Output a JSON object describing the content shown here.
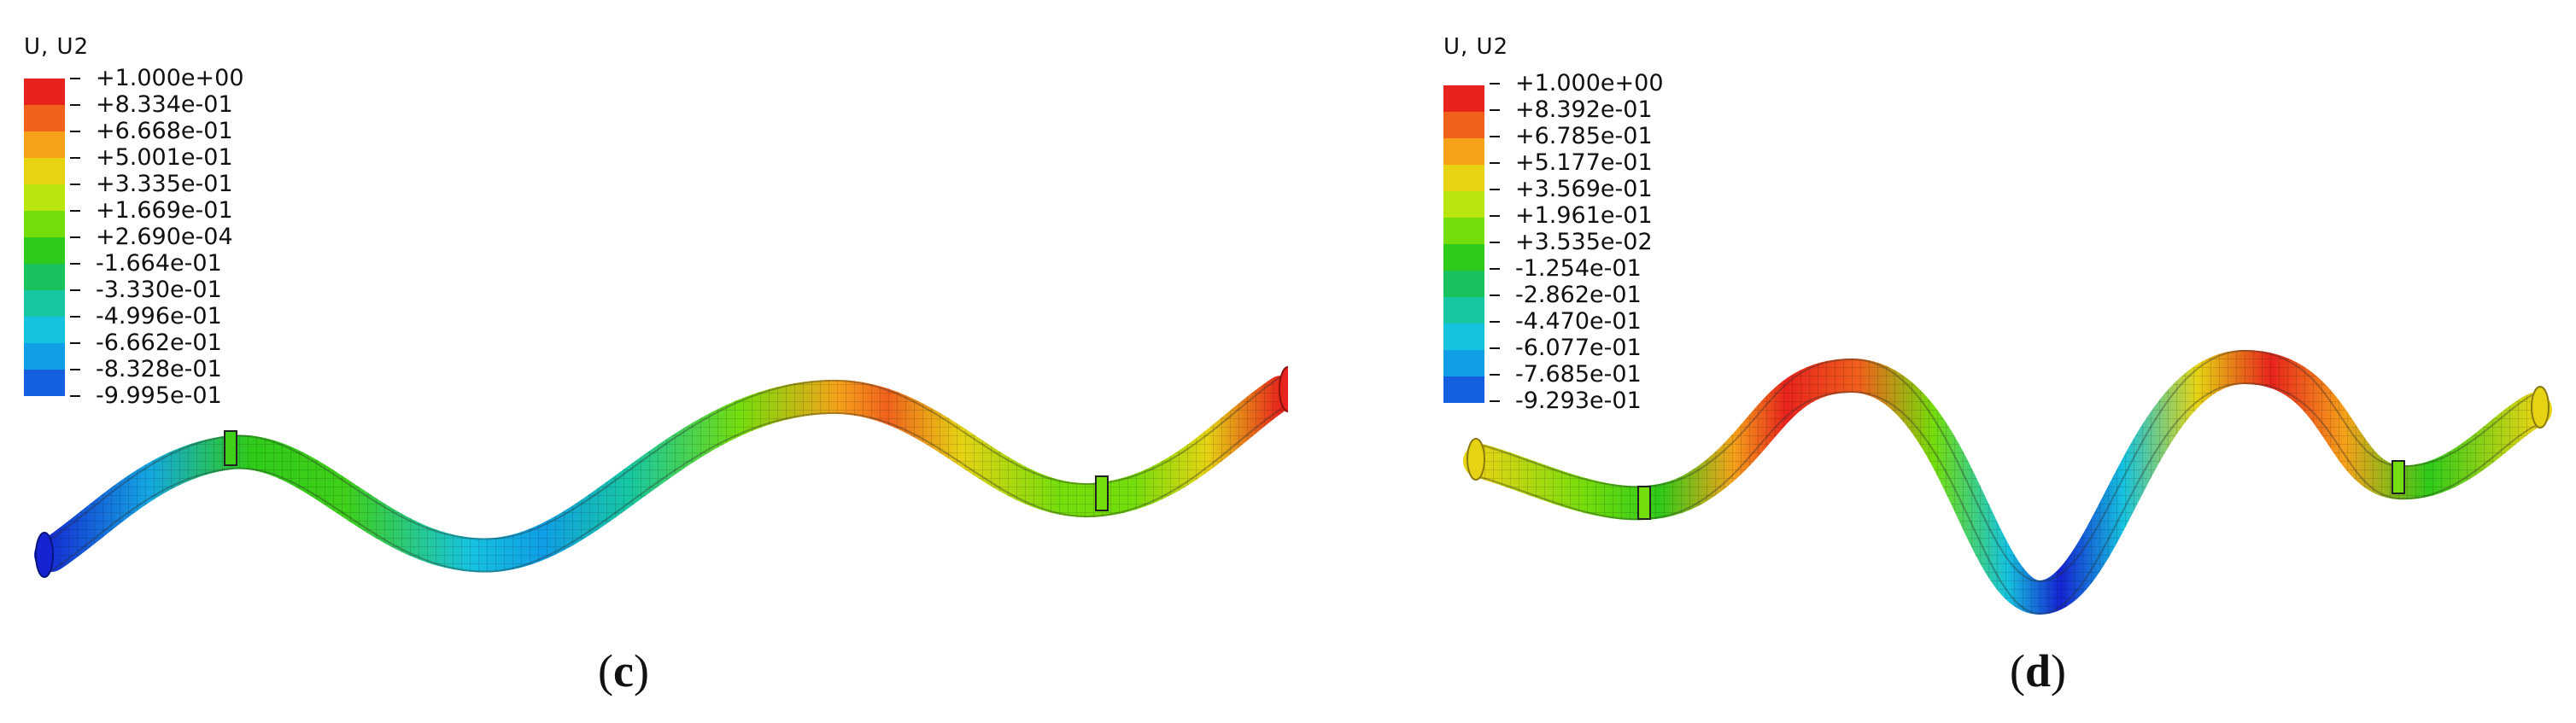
{
  "panels": [
    {
      "id": "c",
      "caption_open": "(",
      "caption_letter": "c",
      "caption_close": ")",
      "legend": {
        "title": "U, U2",
        "labels": [
          "+1.000e+00",
          "+8.334e-01",
          "+6.668e-01",
          "+5.001e-01",
          "+3.335e-01",
          "+1.669e-01",
          "+2.690e-04",
          "-1.664e-01",
          "-3.330e-01",
          "-4.996e-01",
          "-6.662e-01",
          "-8.328e-01",
          "-9.995e-01"
        ]
      }
    },
    {
      "id": "d",
      "caption_open": "(",
      "caption_letter": "d",
      "caption_close": ")",
      "legend": {
        "title": "U, U2",
        "labels": [
          "+1.000e+00",
          "+8.392e-01",
          "+6.785e-01",
          "+5.177e-01",
          "+3.569e-01",
          "+1.961e-01",
          "+3.535e-02",
          "-1.254e-01",
          "-2.862e-01",
          "-4.470e-01",
          "-6.077e-01",
          "-7.685e-01",
          "-9.293e-01"
        ]
      }
    }
  ],
  "colormap": [
    "#e8231d",
    "#f0611c",
    "#f5a21a",
    "#e6d414",
    "#b9e60e",
    "#74dd0c",
    "#2fcb1a",
    "#18c25c",
    "#17c7a2",
    "#16c3df",
    "#109ee6",
    "#1460e0",
    "#1524d2"
  ]
}
